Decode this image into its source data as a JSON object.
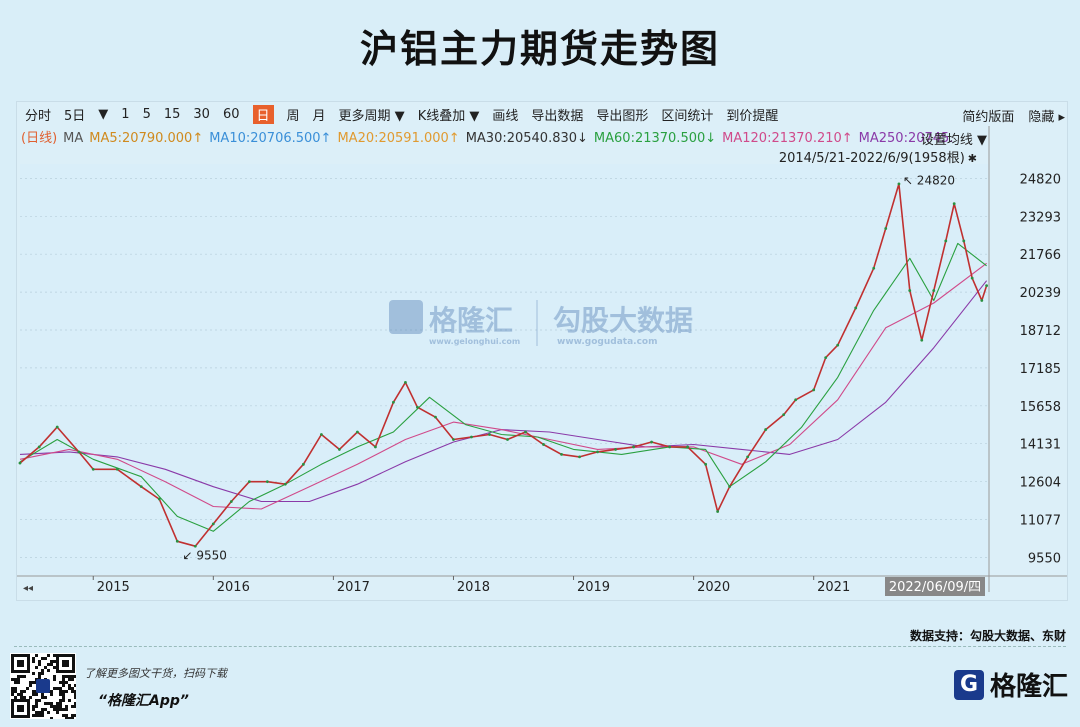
{
  "title": "沪铝主力期货走势图",
  "toolbar": {
    "items": [
      "分时",
      "5日",
      "▼",
      "1",
      "5",
      "15",
      "30",
      "60",
      "日",
      "周",
      "月",
      "更多周期 ▼",
      "K线叠加 ▼",
      "画线",
      "导出数据",
      "导出图形",
      "区间统计",
      "到价提醒"
    ],
    "selected": "日",
    "right": [
      "简约版面",
      "隐藏 ▸"
    ]
  },
  "ma_legend": [
    {
      "text": "(日线)",
      "color": "#e06030"
    },
    {
      "text": "MA",
      "color": "#555555"
    },
    {
      "text": "MA5:20790.000↑",
      "color": "#d08a1e"
    },
    {
      "text": "MA10:20706.500↑",
      "color": "#3a8fd8"
    },
    {
      "text": "MA20:20591.000↑",
      "color": "#e09a30"
    },
    {
      "text": "MA30:20540.830↓",
      "color": "#333333"
    },
    {
      "text": "MA60:21370.500↓",
      "color": "#2aa040"
    },
    {
      "text": "MA120:21370.210↑",
      "color": "#d04a8a"
    },
    {
      "text": "MA250:20745.",
      "color": "#8a3aa8"
    }
  ],
  "ma_settings": "设置均线 ▼",
  "range_text": "2014/5/21-2022/6/9(1958根)",
  "range_pin": "✱",
  "watermark": {
    "brand": "格隆汇",
    "brand_sub": "www.gelonghui.com",
    "data": "勾股大数据",
    "data_sub": "www.gogudata.com"
  },
  "chart_data": {
    "type": "line",
    "ylim": [
      8800,
      25400
    ],
    "y_ticks": [
      24820,
      23293,
      21766,
      20239,
      18712,
      17185,
      15658,
      14131,
      12604,
      11077,
      9550
    ],
    "x_ticks": [
      "2015",
      "2016",
      "2017",
      "2018",
      "2019",
      "2020",
      "2021"
    ],
    "x_tick_pos": [
      2015.0,
      2016.0,
      2017.0,
      2018.0,
      2019.0,
      2020.0,
      2021.0
    ],
    "xlim": [
      2014.39,
      2022.46
    ],
    "cursor_label": "2022/06/09/四",
    "annotations": [
      {
        "text": "↖ 24820",
        "x": 2021.71,
        "y": 24820
      },
      {
        "text": "↙ 9550",
        "x": 2015.71,
        "y": 9550
      }
    ],
    "series": [
      {
        "color": "#c03030",
        "x": [
          2014.39,
          2014.55,
          2014.7,
          2014.88,
          2015.0,
          2015.2,
          2015.4,
          2015.55,
          2015.7,
          2015.85,
          2016.0,
          2016.15,
          2016.3,
          2016.45,
          2016.6,
          2016.75,
          2016.9,
          2017.05,
          2017.2,
          2017.35,
          2017.5,
          2017.6,
          2017.7,
          2017.85,
          2018.0,
          2018.15,
          2018.3,
          2018.45,
          2018.6,
          2018.75,
          2018.9,
          2019.05,
          2019.2,
          2019.35,
          2019.5,
          2019.65,
          2019.8,
          2019.95,
          2020.1,
          2020.2,
          2020.3,
          2020.45,
          2020.6,
          2020.75,
          2020.85,
          2021.0,
          2021.1,
          2021.2,
          2021.35,
          2021.5,
          2021.6,
          2021.71,
          2021.8,
          2021.9,
          2022.0,
          2022.1,
          2022.17,
          2022.25,
          2022.32,
          2022.4,
          2022.44
        ],
        "y": [
          13350,
          14000,
          14800,
          13800,
          13100,
          13100,
          12400,
          11900,
          10200,
          10000,
          10900,
          11800,
          12600,
          12600,
          12500,
          13300,
          14500,
          13900,
          14600,
          14000,
          15800,
          16600,
          15600,
          15200,
          14300,
          14400,
          14500,
          14300,
          14600,
          14100,
          13700,
          13600,
          13800,
          13900,
          14000,
          14200,
          14000,
          14000,
          13300,
          11400,
          12400,
          13600,
          14700,
          15300,
          15900,
          16300,
          17600,
          18100,
          19600,
          21200,
          22800,
          24600,
          20300,
          18300,
          20300,
          22300,
          23800,
          22300,
          20800,
          19900,
          20500
        ]
      },
      {
        "color": "#2aa040",
        "x": [
          2014.39,
          2014.7,
          2015.0,
          2015.4,
          2015.7,
          2016.0,
          2016.3,
          2016.6,
          2016.9,
          2017.2,
          2017.5,
          2017.8,
          2018.1,
          2018.4,
          2018.7,
          2019.0,
          2019.4,
          2019.8,
          2020.1,
          2020.3,
          2020.6,
          2020.9,
          2021.2,
          2021.5,
          2021.8,
          2022.0,
          2022.2,
          2022.44
        ],
        "y": [
          13400,
          14300,
          13500,
          12800,
          11200,
          10600,
          11800,
          12500,
          13300,
          14000,
          14600,
          16000,
          14900,
          14500,
          14400,
          13900,
          13700,
          14000,
          13900,
          12400,
          13400,
          14800,
          16800,
          19500,
          21600,
          19900,
          22200,
          21300
        ]
      },
      {
        "color": "#d04a8a",
        "x": [
          2014.39,
          2014.8,
          2015.2,
          2015.6,
          2016.0,
          2016.4,
          2016.8,
          2017.2,
          2017.6,
          2018.0,
          2018.4,
          2018.8,
          2019.2,
          2019.6,
          2020.0,
          2020.4,
          2020.8,
          2021.2,
          2021.6,
          2022.0,
          2022.44
        ],
        "y": [
          13500,
          13900,
          13500,
          12600,
          11600,
          11500,
          12400,
          13300,
          14300,
          15000,
          14700,
          14300,
          13900,
          14000,
          14000,
          13300,
          14100,
          15900,
          18800,
          19800,
          21400
        ]
      },
      {
        "color": "#8a3aa8",
        "x": [
          2014.39,
          2014.8,
          2015.2,
          2015.6,
          2016.0,
          2016.4,
          2016.8,
          2017.2,
          2017.6,
          2018.0,
          2018.4,
          2018.8,
          2019.2,
          2019.6,
          2020.0,
          2020.4,
          2020.8,
          2021.2,
          2021.6,
          2022.0,
          2022.44
        ],
        "y": [
          13700,
          13800,
          13600,
          13100,
          12400,
          11800,
          11800,
          12500,
          13400,
          14200,
          14700,
          14600,
          14300,
          14000,
          14100,
          13900,
          13700,
          14300,
          15800,
          18000,
          20700
        ]
      }
    ]
  },
  "footer": {
    "source": "数据支持：勾股大数据、东财",
    "qr_note": "了解更多图文干货，扫码下载",
    "qr_app": "“格隆汇App”",
    "brand_logo": "G",
    "brand_name": "格隆汇"
  }
}
